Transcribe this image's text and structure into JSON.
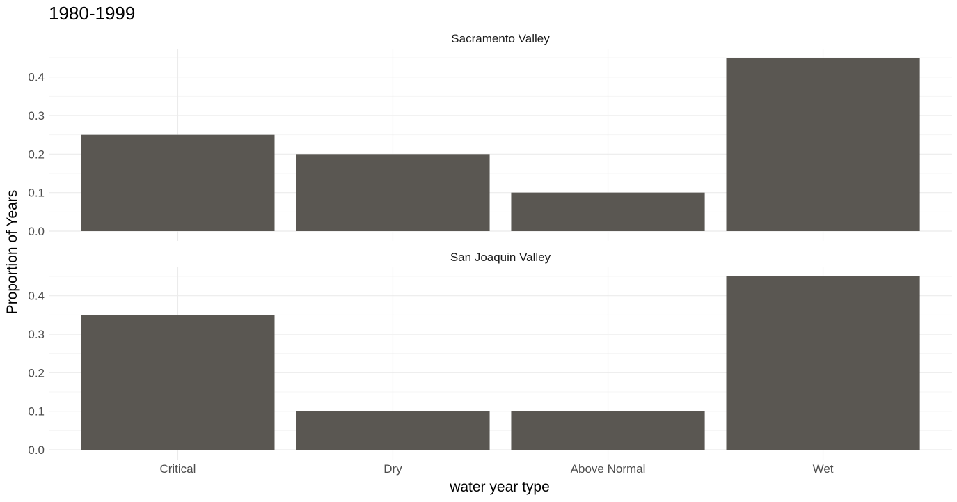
{
  "chart_data": {
    "type": "bar",
    "title": "1980-1999",
    "xlabel": "water year type",
    "ylabel": "Proportion of Years",
    "categories": [
      "Critical",
      "Dry",
      "Above Normal",
      "Wet"
    ],
    "ylim": [
      0,
      0.47
    ],
    "yticks": [
      "0.0",
      "0.1",
      "0.2",
      "0.3",
      "0.4"
    ],
    "grid": true,
    "legend": "none",
    "bar_color": "#5a5752",
    "panels": [
      {
        "name": "Sacramento Valley",
        "values": [
          0.25,
          0.2,
          0.1,
          0.45
        ]
      },
      {
        "name": "San Joaquin Valley",
        "values": [
          0.35,
          0.1,
          0.1,
          0.45
        ]
      }
    ]
  }
}
